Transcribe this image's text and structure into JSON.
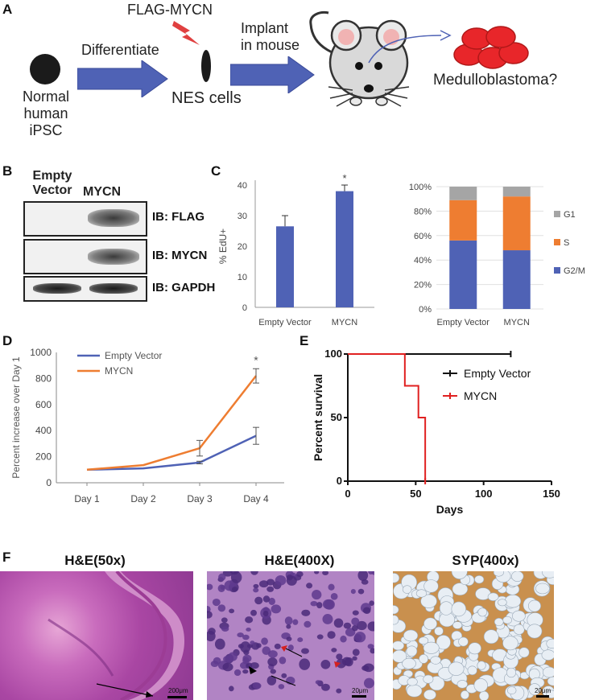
{
  "panel_a": {
    "label": "A",
    "cell_label": "Normal\nhuman\niPSC",
    "step1": "Differentiate",
    "flag_label": "FLAG-MYCN",
    "nes_label": "NES cells",
    "step2": "Implant\nin mouse",
    "outcome": "Medulloblastoma?",
    "colors": {
      "arrow": "#4f62b5",
      "tumor": "#e8262a",
      "lightning": "#e04040"
    }
  },
  "panel_b": {
    "label": "B",
    "lane1": "Empty\nVector",
    "lane2": "MYCN",
    "blots": [
      "IB: FLAG",
      "IB: MYCN",
      "IB: GAPDH"
    ]
  },
  "panel_c": {
    "label": "C"
  },
  "panel_d": {
    "label": "D"
  },
  "panel_e": {
    "label": "E"
  },
  "panel_f": {
    "label": "F",
    "images": [
      {
        "title": "H&E(50x)",
        "scale": "200μm"
      },
      {
        "title": "H&E(400X)",
        "scale": "20μm"
      },
      {
        "title": "SYP(400x)",
        "scale": "20μm"
      }
    ]
  },
  "chart_data": [
    {
      "type": "bar",
      "categories": [
        "Empty Vector",
        "MYCN"
      ],
      "values": [
        26.5,
        38
      ],
      "errors": [
        3.5,
        2
      ],
      "ylabel": "% EdU+",
      "ylim": [
        0,
        40
      ],
      "yticks": [
        0,
        10,
        20,
        30,
        40
      ],
      "significance": [
        "",
        "*"
      ],
      "color": "#4f62b5"
    },
    {
      "type": "bar",
      "stacked": true,
      "categories": [
        "Empty Vector",
        "MYCN"
      ],
      "series": [
        {
          "name": "G2/M",
          "values": [
            56,
            48
          ],
          "color": "#4f62b5"
        },
        {
          "name": "S",
          "values": [
            33,
            44
          ],
          "color": "#ee7d31"
        },
        {
          "name": "G1",
          "values": [
            11,
            8
          ],
          "color": "#a5a5a5"
        }
      ],
      "yticks": [
        "0%",
        "20%",
        "40%",
        "60%",
        "80%",
        "100%"
      ],
      "ylim": [
        0,
        100
      ],
      "legend": "right"
    },
    {
      "type": "line",
      "categories": [
        "Day 1",
        "Day 2",
        "Day 3",
        "Day 4"
      ],
      "series": [
        {
          "name": "Empty Vector",
          "values": [
            100,
            110,
            155,
            360
          ],
          "errors": [
            0,
            0,
            10,
            65
          ],
          "color": "#4f62b5"
        },
        {
          "name": "MYCN",
          "values": [
            100,
            135,
            265,
            820
          ],
          "errors": [
            0,
            0,
            60,
            55
          ],
          "color": "#ee7d31"
        }
      ],
      "ylabel": "Percent increase over Day 1",
      "ylim": [
        0,
        1000
      ],
      "yticks": [
        0,
        200,
        400,
        600,
        800,
        1000
      ],
      "significance_label": "*",
      "legend": "top-left"
    },
    {
      "type": "line",
      "step": true,
      "xlabel": "Days",
      "ylabel": "Percent survival",
      "xlim": [
        0,
        150
      ],
      "ylim": [
        0,
        100
      ],
      "xticks": [
        0,
        50,
        100,
        150
      ],
      "yticks": [
        0,
        50,
        100
      ],
      "series": [
        {
          "name": "Empty Vector",
          "x": [
            0,
            120
          ],
          "y": [
            100,
            100
          ],
          "color": "#111111"
        },
        {
          "name": "MYCN",
          "x": [
            0,
            42,
            42,
            52,
            52,
            57,
            57
          ],
          "y": [
            100,
            100,
            75,
            75,
            50,
            50,
            0
          ],
          "color": "#e02020"
        }
      ],
      "legend": "right"
    }
  ]
}
